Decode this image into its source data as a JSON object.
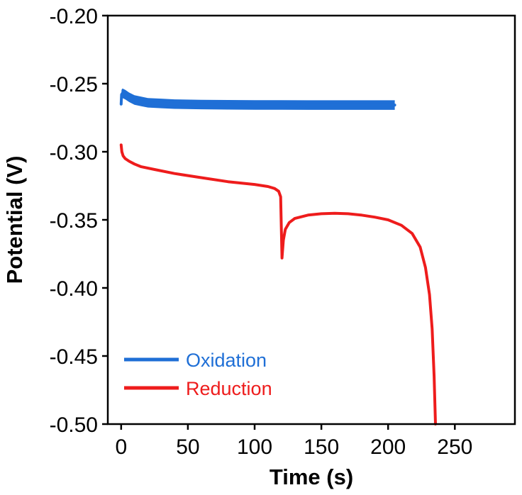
{
  "chart_data": {
    "type": "line",
    "xlabel": "Time (s)",
    "ylabel": "Potential (V)",
    "xlim": [
      -10,
      295
    ],
    "ylim": [
      -0.5,
      -0.2
    ],
    "xticks": [
      0,
      50,
      100,
      150,
      200,
      250
    ],
    "yticks": [
      -0.2,
      -0.25,
      -0.3,
      -0.35,
      -0.4,
      -0.45,
      -0.5
    ],
    "xtick_labels": [
      "0",
      "50",
      "100",
      "150",
      "200",
      "250"
    ],
    "ytick_labels": [
      "-0.20",
      "-0.25",
      "-0.30",
      "-0.35",
      "-0.40",
      "-0.45",
      "-0.50"
    ],
    "grid": false,
    "legend_position": "bottom-left",
    "series": [
      {
        "name": "Oxidation",
        "color": "#1f6fd6",
        "band": 0.0035,
        "x": [
          0,
          0.3,
          1,
          3,
          6,
          10,
          15,
          20,
          30,
          40,
          60,
          80,
          100,
          120,
          140,
          160,
          180,
          205
        ],
        "y": [
          -0.265,
          -0.258,
          -0.257,
          -0.258,
          -0.26,
          -0.262,
          -0.263,
          -0.264,
          -0.2645,
          -0.265,
          -0.2653,
          -0.2655,
          -0.2656,
          -0.2656,
          -0.2657,
          -0.2657,
          -0.2657,
          -0.2657
        ]
      },
      {
        "name": "Reduction",
        "color": "#ee1c1c",
        "band": 0,
        "x": [
          0,
          0.5,
          1.5,
          3,
          6,
          10,
          15,
          25,
          40,
          60,
          80,
          100,
          110,
          115,
          118,
          119.5,
          120.5,
          121.5,
          123,
          126,
          130,
          140,
          150,
          160,
          170,
          180,
          190,
          200,
          210,
          218,
          224,
          228,
          231,
          233,
          234.5,
          235.5
        ],
        "y": [
          -0.295,
          -0.3,
          -0.303,
          -0.305,
          -0.307,
          -0.309,
          -0.311,
          -0.313,
          -0.316,
          -0.319,
          -0.322,
          -0.324,
          -0.3255,
          -0.327,
          -0.329,
          -0.333,
          -0.378,
          -0.365,
          -0.357,
          -0.352,
          -0.349,
          -0.3465,
          -0.3455,
          -0.3452,
          -0.3455,
          -0.3465,
          -0.348,
          -0.35,
          -0.354,
          -0.36,
          -0.37,
          -0.385,
          -0.405,
          -0.43,
          -0.465,
          -0.5
        ]
      }
    ]
  }
}
